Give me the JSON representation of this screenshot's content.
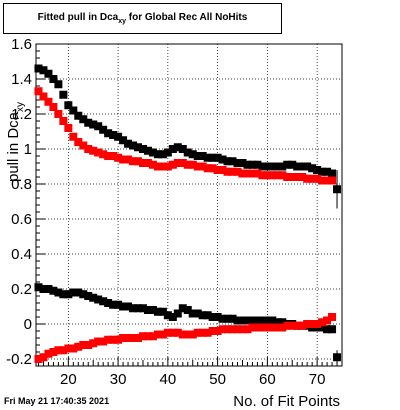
{
  "title": {
    "main": "Fitted pull in Dca",
    "sub": "xy",
    "rest": " for Global Rec All NoHits"
  },
  "footer": "Fri May 21 17:40:35 2021",
  "chart_data": {
    "type": "scatter",
    "xlabel": "No. of Fit Points",
    "ylabel": "pull in Dca",
    "ylabel_sub": "xy",
    "xlim": [
      13.5,
      75
    ],
    "ylim": [
      -0.24,
      1.6
    ],
    "xticks": [
      20,
      30,
      40,
      50,
      60,
      70
    ],
    "yticks": [
      -0.2,
      0,
      0.2,
      0.4,
      0.6,
      0.8,
      1,
      1.2,
      1.4,
      1.6
    ],
    "ytick_labels": [
      "-0.2",
      "0",
      "0.2",
      "0.4",
      "0.6",
      "0.8",
      "1",
      "1.2",
      "1.4",
      "1.6"
    ],
    "grid": true,
    "series": [
      {
        "color": "#000000",
        "x": [
          14,
          15,
          16,
          17,
          18,
          19,
          20,
          21,
          22,
          23,
          24,
          25,
          26,
          27,
          28,
          29,
          30,
          31,
          32,
          33,
          34,
          35,
          36,
          37,
          38,
          39,
          40,
          41,
          42,
          43,
          44,
          45,
          46,
          47,
          48,
          49,
          50,
          51,
          52,
          53,
          54,
          55,
          56,
          57,
          58,
          59,
          60,
          61,
          62,
          63,
          64,
          65,
          66,
          67,
          68,
          69,
          70,
          71,
          72,
          73,
          74
        ],
        "y": [
          1.46,
          1.45,
          1.43,
          1.4,
          1.37,
          1.31,
          1.25,
          1.22,
          1.19,
          1.17,
          1.15,
          1.14,
          1.13,
          1.11,
          1.09,
          1.08,
          1.07,
          1.05,
          1.03,
          1.02,
          1.01,
          1.0,
          0.99,
          0.98,
          0.97,
          0.97,
          0.98,
          1.0,
          1.01,
          1.0,
          0.98,
          0.97,
          0.96,
          0.96,
          0.95,
          0.95,
          0.95,
          0.94,
          0.93,
          0.93,
          0.92,
          0.92,
          0.91,
          0.91,
          0.91,
          0.9,
          0.9,
          0.9,
          0.9,
          0.9,
          0.91,
          0.91,
          0.9,
          0.9,
          0.9,
          0.89,
          0.88,
          0.87,
          0.87,
          0.86,
          0.77
        ]
      },
      {
        "color": "#ff0000",
        "x": [
          14,
          15,
          16,
          17,
          18,
          19,
          20,
          21,
          22,
          23,
          24,
          25,
          26,
          27,
          28,
          29,
          30,
          31,
          32,
          33,
          34,
          35,
          36,
          37,
          38,
          39,
          40,
          41,
          42,
          43,
          44,
          45,
          46,
          47,
          48,
          49,
          50,
          51,
          52,
          53,
          54,
          55,
          56,
          57,
          58,
          59,
          60,
          61,
          62,
          63,
          64,
          65,
          66,
          67,
          68,
          69,
          70,
          71,
          72,
          73
        ],
        "y": [
          1.33,
          1.3,
          1.27,
          1.24,
          1.2,
          1.16,
          1.12,
          1.07,
          1.04,
          1.02,
          1.0,
          0.99,
          0.98,
          0.97,
          0.96,
          0.96,
          0.95,
          0.94,
          0.94,
          0.93,
          0.93,
          0.92,
          0.92,
          0.91,
          0.9,
          0.9,
          0.9,
          0.91,
          0.92,
          0.92,
          0.91,
          0.91,
          0.9,
          0.9,
          0.89,
          0.89,
          0.88,
          0.88,
          0.87,
          0.87,
          0.87,
          0.86,
          0.86,
          0.86,
          0.86,
          0.85,
          0.85,
          0.85,
          0.85,
          0.85,
          0.84,
          0.84,
          0.84,
          0.84,
          0.83,
          0.83,
          0.83,
          0.82,
          0.82,
          0.82
        ]
      },
      {
        "color": "#000000",
        "x": [
          14,
          15,
          16,
          17,
          18,
          19,
          20,
          21,
          22,
          23,
          24,
          25,
          26,
          27,
          28,
          29,
          30,
          31,
          32,
          33,
          34,
          35,
          36,
          37,
          38,
          39,
          40,
          41,
          42,
          43,
          44,
          45,
          46,
          47,
          48,
          49,
          50,
          51,
          52,
          53,
          54,
          55,
          56,
          57,
          58,
          59,
          60,
          61,
          62,
          63,
          64,
          65,
          66,
          67,
          68,
          69,
          70,
          71,
          72,
          73,
          74
        ],
        "y": [
          0.21,
          0.2,
          0.2,
          0.19,
          0.18,
          0.17,
          0.17,
          0.18,
          0.18,
          0.17,
          0.16,
          0.15,
          0.14,
          0.13,
          0.12,
          0.11,
          0.11,
          0.1,
          0.1,
          0.09,
          0.09,
          0.09,
          0.08,
          0.08,
          0.07,
          0.07,
          0.05,
          0.04,
          0.06,
          0.09,
          0.08,
          0.06,
          0.06,
          0.05,
          0.05,
          0.04,
          0.04,
          0.03,
          0.03,
          0.03,
          0.02,
          0.02,
          0.02,
          0.02,
          0.02,
          0.02,
          0.02,
          0.02,
          0.01,
          0.01,
          0.0,
          0.0,
          -0.01,
          -0.01,
          -0.01,
          -0.02,
          -0.02,
          -0.02,
          -0.03,
          -0.03,
          -0.19
        ]
      },
      {
        "color": "#ff0000",
        "x": [
          14,
          15,
          16,
          17,
          18,
          19,
          20,
          21,
          22,
          23,
          24,
          25,
          26,
          27,
          28,
          29,
          30,
          31,
          32,
          33,
          34,
          35,
          36,
          37,
          38,
          39,
          40,
          41,
          42,
          43,
          44,
          45,
          46,
          47,
          48,
          49,
          50,
          51,
          52,
          53,
          54,
          55,
          56,
          57,
          58,
          59,
          60,
          61,
          62,
          63,
          64,
          65,
          66,
          67,
          68,
          69,
          70,
          71,
          72,
          73
        ],
        "y": [
          -0.2,
          -0.19,
          -0.17,
          -0.16,
          -0.15,
          -0.15,
          -0.14,
          -0.14,
          -0.13,
          -0.12,
          -0.12,
          -0.11,
          -0.1,
          -0.1,
          -0.09,
          -0.09,
          -0.09,
          -0.08,
          -0.08,
          -0.08,
          -0.08,
          -0.07,
          -0.07,
          -0.07,
          -0.06,
          -0.06,
          -0.05,
          -0.05,
          -0.05,
          -0.06,
          -0.06,
          -0.06,
          -0.05,
          -0.05,
          -0.05,
          -0.04,
          -0.04,
          -0.03,
          -0.03,
          -0.03,
          -0.03,
          -0.03,
          -0.03,
          -0.02,
          -0.02,
          -0.02,
          -0.02,
          -0.02,
          -0.02,
          -0.02,
          -0.01,
          -0.01,
          -0.01,
          -0.01,
          0.0,
          0.0,
          0.0,
          0.01,
          0.02,
          0.04
        ]
      }
    ]
  }
}
